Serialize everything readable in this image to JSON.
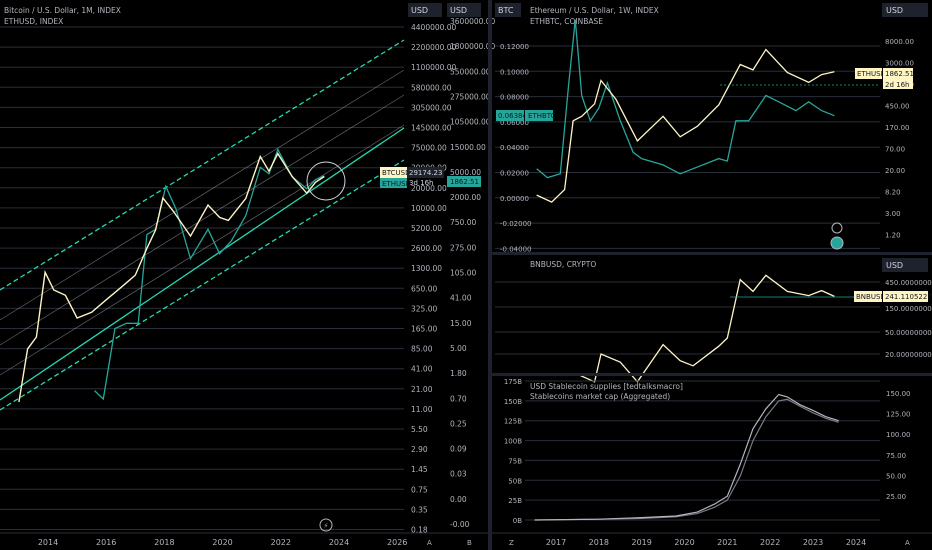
{
  "colors": {
    "background": "#000000",
    "grid": "#2a2e39",
    "axis_text": "#b2b5be",
    "btc": "#fff5c2",
    "eth": "#26a69a",
    "channel": "#26d9b0",
    "bnb": "#fff5c2",
    "stable_a": "#b2b5be",
    "stable_b": "#787b86",
    "tag_dark": "#1e222d"
  },
  "left_panel": {
    "legend_main": "Bitcoin / U.S. Dollar, 1M, INDEX",
    "legend_sub": "ETHUSD, INDEX",
    "axis_a_header": "USD",
    "axis_b_header": "USD",
    "axis_a_ticks": [
      "4400000.00",
      "2200000.00",
      "1100000.00",
      "580000.00",
      "305000.00",
      "145000.00",
      "75000.00",
      "39000.00",
      "20000.00",
      "10000.00",
      "5200.00",
      "2600.00",
      "1300.00",
      "650.00",
      "325.00",
      "165.00",
      "85.00",
      "41.00",
      "21.00",
      "11.00",
      "5.50",
      "2.90",
      "1.45",
      "0.75",
      "0.35",
      "0.18"
    ],
    "axis_b_ticks": [
      "3600000.00",
      "1800000.00",
      "550000.00",
      "275000.00",
      "105000.00",
      "15000.00",
      "5000.00",
      "2000.00",
      "750.00",
      "275.00",
      "105.00",
      "41.00",
      "15.00",
      "5.00",
      "1.80",
      "0.70",
      "0.25",
      "0.09",
      "0.03",
      "0.00",
      "-0.00"
    ],
    "x_ticks": [
      "2014",
      "2016",
      "2018",
      "2020",
      "2022",
      "2024",
      "2026"
    ],
    "btc_tag_label": "BTCUSD",
    "btc_tag_value": "29174.23",
    "btc_tag_time": "3d 16h",
    "eth_tag_label": "ETHUSD",
    "eth_tag_value": "1862.51",
    "corner_a": "A",
    "corner_b": "B"
  },
  "top_right": {
    "legend_main": "Ethereum / U.S. Dollar, 1W, INDEX",
    "legend_sub": "ETHBTC, COINBASE",
    "left_header": "BTC",
    "right_header": "USD",
    "left_ticks": [
      "0.12000",
      "0.10000",
      "0.08000",
      "0.06000",
      "0.04000",
      "0.02000",
      "0.00000",
      "-0.02000",
      "-0.04000"
    ],
    "right_ticks": [
      "8000.00",
      "3000.00",
      "1250.00",
      "450.00",
      "170.00",
      "70.00",
      "20.00",
      "8.20",
      "3.00",
      "1.20"
    ],
    "ethbtc_tag_label": "ETHBTC",
    "ethbtc_tag_value": "0.06384",
    "ethusd_tag_label": "ETHUSD",
    "ethusd_tag_value": "1862.51",
    "ethusd_tag_time": "2d 16h"
  },
  "mid_right": {
    "legend": "BNBUSD, CRYPTO",
    "right_header": "USD",
    "right_ticks": [
      "450.00000000",
      "150.00000000",
      "50.00000000",
      "20.00000000"
    ],
    "tag_label": "BNBUSD",
    "tag_value": "241.11052275"
  },
  "bottom_right": {
    "legend_1": "USD Stablecoin supplies [tedtalksmacro]",
    "legend_2": "Stablecoins market cap (Aggregated)",
    "left_ticks": [
      "175B",
      "150B",
      "125B",
      "100B",
      "75B",
      "50B",
      "25B",
      "0B"
    ],
    "right_ticks": [
      "150.00",
      "125.00",
      "100.00",
      "75.00",
      "50.00",
      "25.00"
    ],
    "x_ticks": [
      "2017",
      "2018",
      "2019",
      "2020",
      "2021",
      "2022",
      "2023",
      "2024"
    ],
    "corner_z": "Z",
    "corner_a": "A"
  },
  "chart_data": [
    {
      "type": "line",
      "title": "Bitcoin / U.S. Dollar, 1M, INDEX",
      "scale": "log",
      "series": [
        {
          "name": "BTCUSD",
          "x": [
            2013.0,
            2013.3,
            2013.6,
            2013.9,
            2014.2,
            2014.6,
            2015.0,
            2015.5,
            2016.0,
            2016.5,
            2017.0,
            2017.4,
            2017.7,
            2017.95,
            2018.3,
            2018.9,
            2019.5,
            2019.9,
            2020.2,
            2020.8,
            2021.3,
            2021.6,
            2021.9,
            2022.4,
            2022.9,
            2023.2,
            2023.5
          ],
          "y": [
            13,
            80,
            120,
            1100,
            600,
            500,
            230,
            280,
            430,
            650,
            1000,
            2500,
            4700,
            14000,
            9000,
            3800,
            11000,
            7200,
            6500,
            13800,
            58000,
            35000,
            64000,
            29000,
            16500,
            24000,
            29174
          ]
        },
        {
          "name": "ETHUSD",
          "x": [
            2015.6,
            2015.9,
            2016.3,
            2016.7,
            2017.1,
            2017.4,
            2017.7,
            2018.05,
            2018.4,
            2018.9,
            2019.5,
            2019.9,
            2020.3,
            2020.8,
            2021.3,
            2021.6,
            2021.9,
            2022.4,
            2022.9,
            2023.2,
            2023.5
          ],
          "y": [
            1.2,
            0.9,
            10,
            12,
            12,
            250,
            300,
            1300,
            600,
            110,
            300,
            130,
            200,
            480,
            2500,
            2000,
            4600,
            1800,
            1200,
            1650,
            1862.51
          ]
        }
      ]
    },
    {
      "type": "line",
      "title": "Ethereum / U.S. Dollar, 1W, INDEX",
      "series": [
        {
          "name": "ETHBTC",
          "x": [
            2016.55,
            2016.8,
            2017.1,
            2017.3,
            2017.45,
            2017.6,
            2017.8,
            2018.0,
            2018.2,
            2018.5,
            2018.8,
            2019.0,
            2019.5,
            2019.9,
            2020.2,
            2020.8,
            2021.0,
            2021.2,
            2021.5,
            2021.9,
            2022.2,
            2022.6,
            2022.9,
            2023.2,
            2023.5
          ],
          "y": [
            0.022,
            0.015,
            0.018,
            0.09,
            0.14,
            0.08,
            0.06,
            0.07,
            0.09,
            0.06,
            0.035,
            0.03,
            0.025,
            0.018,
            0.022,
            0.03,
            0.028,
            0.06,
            0.06,
            0.08,
            0.075,
            0.068,
            0.075,
            0.068,
            0.064
          ]
        },
        {
          "name": "ETHUSD",
          "x": [
            2016.55,
            2016.9,
            2017.2,
            2017.4,
            2017.6,
            2017.9,
            2018.05,
            2018.4,
            2018.9,
            2019.5,
            2019.9,
            2020.3,
            2020.8,
            2021.3,
            2021.6,
            2021.9,
            2022.4,
            2022.9,
            2023.2,
            2023.5
          ],
          "y": [
            12,
            9,
            15,
            250,
            300,
            500,
            1300,
            600,
            110,
            300,
            130,
            200,
            480,
            2500,
            2000,
            4600,
            1800,
            1200,
            1650,
            1862.51
          ]
        }
      ]
    },
    {
      "type": "line",
      "title": "BNBUSD, CRYPTO",
      "series": [
        {
          "name": "BNBUSD",
          "x": [
            2017.55,
            2017.9,
            2018.05,
            2018.5,
            2018.9,
            2019.5,
            2019.9,
            2020.2,
            2020.8,
            2021.0,
            2021.3,
            2021.6,
            2021.9,
            2022.4,
            2022.9,
            2023.2,
            2023.5
          ],
          "y": [
            8,
            6,
            20,
            14,
            6,
            30,
            15,
            12,
            28,
            40,
            500,
            300,
            600,
            300,
            250,
            310,
            241.11
          ]
        }
      ]
    },
    {
      "type": "line",
      "title": "USD Stablecoin supplies [tedtalksmacro]",
      "ylim": [
        0,
        175
      ],
      "series": [
        {
          "name": "USD Stablecoin supplies [tedtalksmacro]",
          "x": [
            2016.5,
            2018.0,
            2019.0,
            2019.8,
            2020.3,
            2020.7,
            2021.0,
            2021.3,
            2021.6,
            2021.9,
            2022.2,
            2022.4,
            2022.7,
            2023.0,
            2023.3,
            2023.6
          ],
          "y": [
            0,
            1,
            3,
            5,
            10,
            20,
            30,
            70,
            115,
            140,
            158,
            155,
            145,
            138,
            130,
            125
          ]
        },
        {
          "name": "Stablecoins market cap (Aggregated)",
          "x": [
            2016.5,
            2018.0,
            2019.0,
            2019.8,
            2020.3,
            2020.7,
            2021.0,
            2021.3,
            2021.6,
            2021.9,
            2022.2,
            2022.4,
            2022.7,
            2023.0,
            2023.3,
            2023.6
          ],
          "y": [
            0,
            1,
            2,
            4,
            8,
            16,
            25,
            55,
            100,
            130,
            150,
            152,
            143,
            135,
            128,
            123
          ]
        }
      ]
    }
  ]
}
